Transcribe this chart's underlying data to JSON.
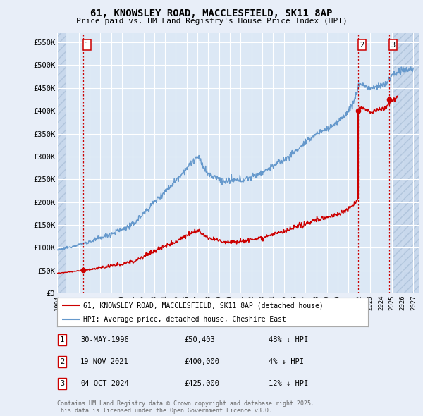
{
  "title": "61, KNOWSLEY ROAD, MACCLESFIELD, SK11 8AP",
  "subtitle": "Price paid vs. HM Land Registry's House Price Index (HPI)",
  "ylabel_ticks": [
    "£0",
    "£50K",
    "£100K",
    "£150K",
    "£200K",
    "£250K",
    "£300K",
    "£350K",
    "£400K",
    "£450K",
    "£500K",
    "£550K"
  ],
  "ytick_values": [
    0,
    50000,
    100000,
    150000,
    200000,
    250000,
    300000,
    350000,
    400000,
    450000,
    500000,
    550000
  ],
  "ylim": [
    0,
    570000
  ],
  "xlim_start": 1994.0,
  "xlim_end": 2027.5,
  "background_color": "#e8eef8",
  "plot_bg_color": "#dce8f5",
  "grid_color": "#ffffff",
  "transaction_dates": [
    1996.41,
    2021.89,
    2024.75
  ],
  "transaction_prices": [
    50403,
    400000,
    425000
  ],
  "transaction_labels": [
    "1",
    "2",
    "3"
  ],
  "legend_line1": "61, KNOWSLEY ROAD, MACCLESFIELD, SK11 8AP (detached house)",
  "legend_line2": "HPI: Average price, detached house, Cheshire East",
  "table_rows": [
    [
      "1",
      "30-MAY-1996",
      "£50,403",
      "48% ↓ HPI"
    ],
    [
      "2",
      "19-NOV-2021",
      "£400,000",
      "4% ↓ HPI"
    ],
    [
      "3",
      "04-OCT-2024",
      "£425,000",
      "12% ↓ HPI"
    ]
  ],
  "footer": "Contains HM Land Registry data © Crown copyright and database right 2025.\nThis data is licensed under the Open Government Licence v3.0.",
  "red_color": "#cc0000",
  "blue_color": "#6699cc",
  "marker_color": "#cc0000"
}
